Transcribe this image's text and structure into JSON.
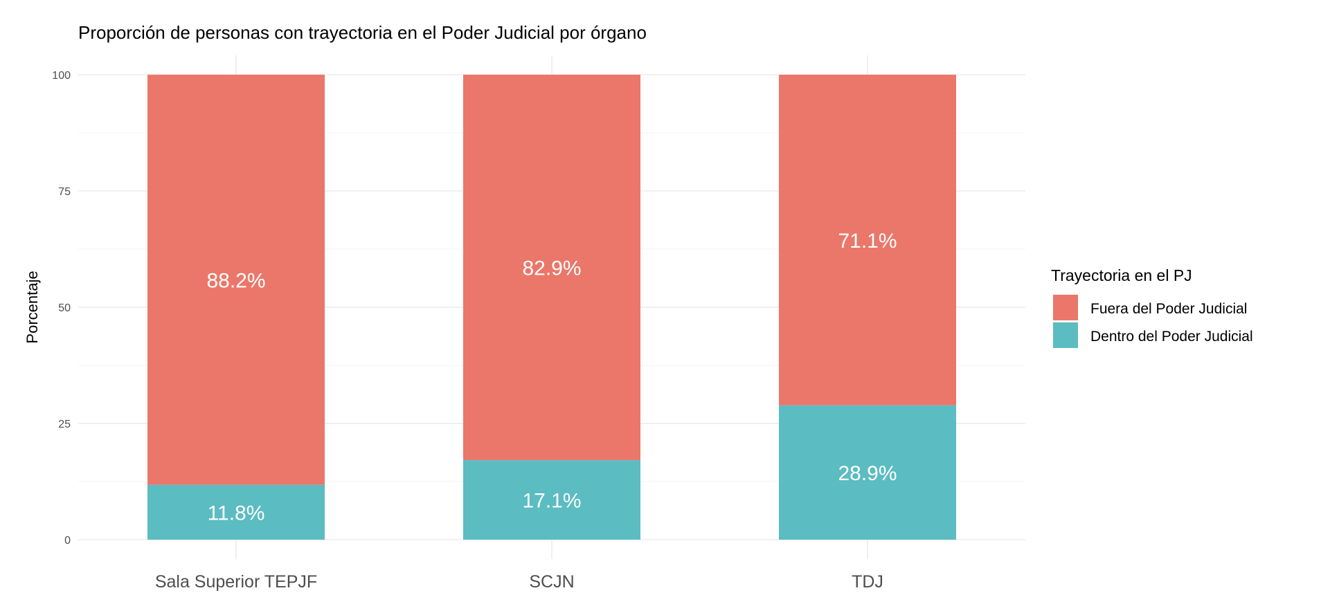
{
  "chart_data": {
    "type": "bar",
    "stacked": true,
    "title": "Proporción de personas con trayectoria en el Poder Judicial por órgano",
    "xlabel": "",
    "ylabel": "Porcentaje",
    "ylim": [
      0,
      100
    ],
    "yticks": [
      "0",
      "25",
      "50",
      "75",
      "100"
    ],
    "categories": [
      "Sala Superior TEPJF",
      "SCJN",
      "TDJ"
    ],
    "series": [
      {
        "name": "Dentro del Poder Judicial",
        "color": "#5bbcc2",
        "values": [
          11.8,
          17.1,
          28.9
        ],
        "labels": [
          "11.8%",
          "17.1%",
          "28.9%"
        ]
      },
      {
        "name": "Fuera del Poder Judicial",
        "color": "#ea776a",
        "values": [
          88.2,
          82.9,
          71.1
        ],
        "labels": [
          "88.2%",
          "82.9%",
          "71.1%"
        ]
      }
    ],
    "legend": {
      "title": "Trayectoria en el PJ",
      "position": "right",
      "entries": [
        "Fuera del Poder Judicial",
        "Dentro del Poder Judicial"
      ]
    },
    "grid": true
  }
}
